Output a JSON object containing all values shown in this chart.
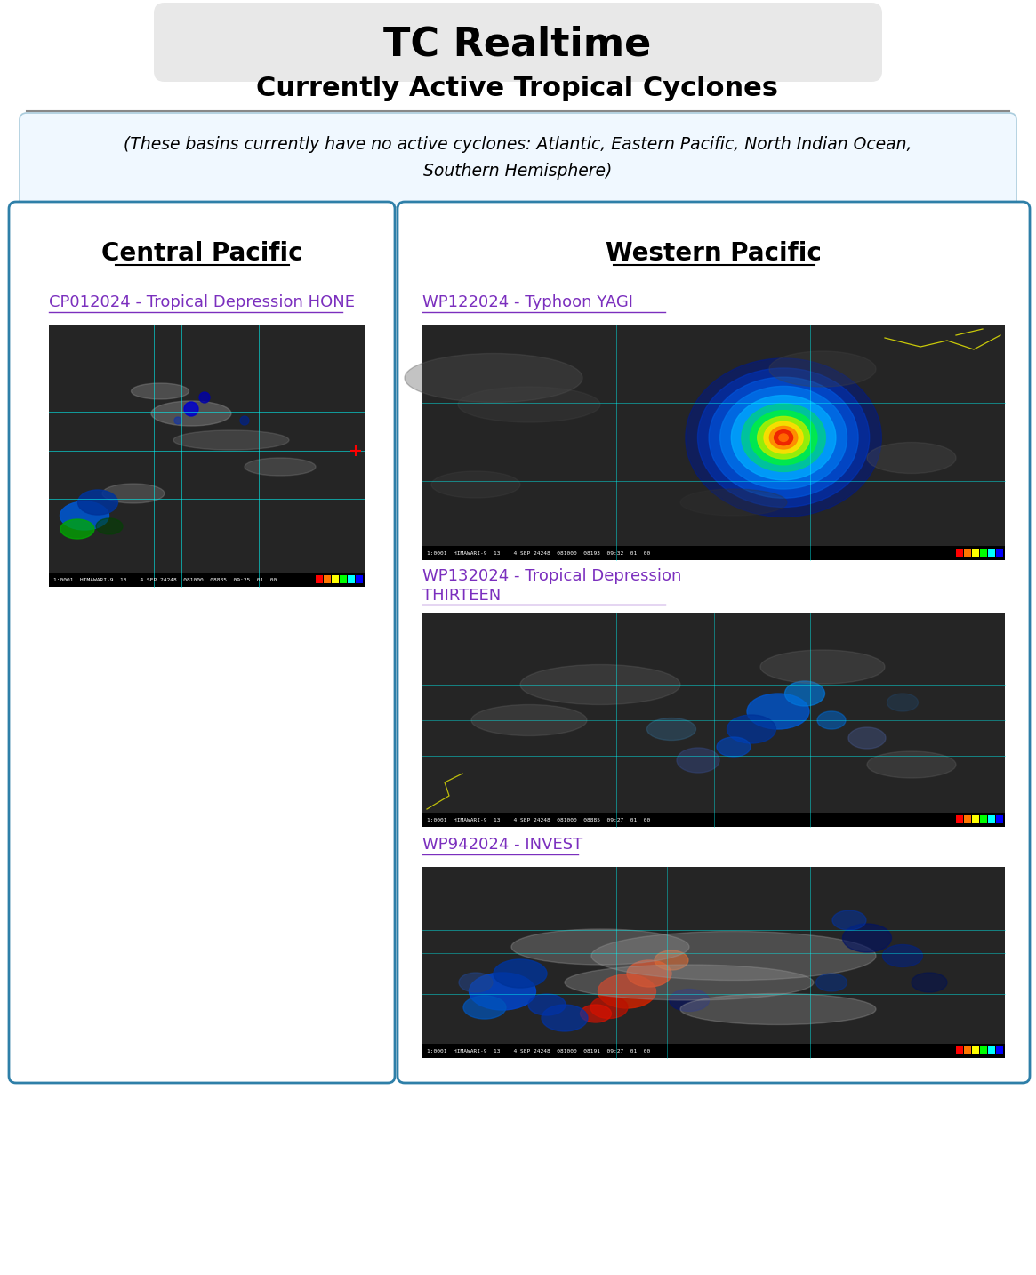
{
  "title": "TC Realtime",
  "subtitle": "Currently Active Tropical Cyclones",
  "notice_line1": "(These basins currently have no active cyclones: Atlantic, Eastern Pacific, North Indian Ocean,",
  "notice_line2": "Southern Hemisphere)",
  "left_panel_title": "Central Pacific",
  "right_panel_title": "Western Pacific",
  "left_link": "CP012024 - Tropical Depression HONE",
  "right_link1": "WP122024 - Typhoon YAGI",
  "right_link2a": "WP132024 - Tropical Depression",
  "right_link2b": "THIRTEEN",
  "right_link3": "WP942024 - INVEST",
  "bg_color": "#ffffff",
  "title_bg_color": "#e8e8e8",
  "panel_border_color": "#2e7fa8",
  "notice_border_color": "#aaccdd",
  "link_color": "#7b2fbe",
  "header_color": "#000000",
  "separator_color": "#888888",
  "notice_bg_color": "#f0f8ff",
  "sat_bar_colors": [
    "#ff0000",
    "#ff7700",
    "#ffff00",
    "#00ff00",
    "#00ffff",
    "#0000ff"
  ]
}
